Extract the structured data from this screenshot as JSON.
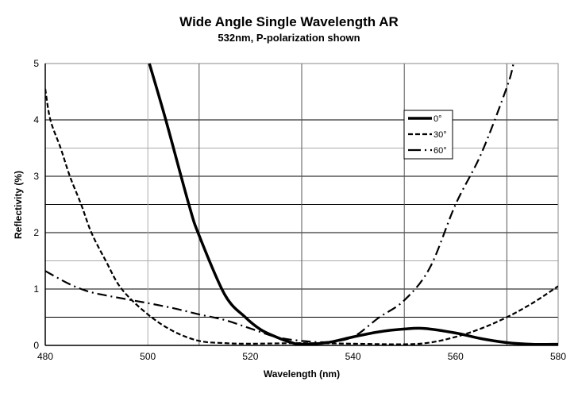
{
  "chart_data": {
    "type": "line",
    "title": "Wide Angle Single Wavelength AR",
    "subtitle": "532nm, P-polarization shown",
    "xlabel": "Wavelength (nm)",
    "ylabel": "Reflectivity (%)",
    "xlim": [
      480,
      580
    ],
    "ylim": [
      0,
      5
    ],
    "xticks": [
      480,
      500,
      520,
      540,
      560,
      580
    ],
    "yticks": [
      0,
      1,
      2,
      3,
      4,
      5
    ],
    "grid": true,
    "legend_position": "upper-middle-right",
    "series": [
      {
        "name": "0°",
        "style": "solid-thick",
        "x": [
          500.3,
          503.5,
          508,
          510,
          515,
          519,
          522,
          525,
          528,
          530,
          535,
          540,
          545,
          550,
          554,
          560,
          565,
          570,
          575,
          580
        ],
        "y": [
          5,
          4,
          2.5,
          1.95,
          0.9,
          0.5,
          0.28,
          0.15,
          0.05,
          0.02,
          0.05,
          0.15,
          0.24,
          0.29,
          0.3,
          0.22,
          0.12,
          0.05,
          0.02,
          0.02
        ]
      },
      {
        "name": "30°",
        "style": "dashed",
        "x": [
          480,
          481,
          483,
          484.8,
          487,
          489,
          491.8,
          494.9,
          500,
          505,
          510,
          515,
          520,
          530,
          540,
          550,
          555,
          560,
          565,
          570,
          575,
          580
        ],
        "y": [
          4.55,
          4.0,
          3.5,
          3.0,
          2.5,
          2.0,
          1.5,
          1.0,
          0.55,
          0.25,
          0.08,
          0.04,
          0.03,
          0.04,
          0.03,
          0.02,
          0.05,
          0.15,
          0.3,
          0.5,
          0.75,
          1.05
        ]
      },
      {
        "name": "60°",
        "style": "dash-dot",
        "x": [
          480,
          484,
          487,
          490,
          497,
          500,
          505,
          510,
          515,
          520,
          525,
          530,
          535,
          540,
          545,
          550,
          555,
          560,
          565,
          570,
          571.3
        ],
        "y": [
          1.32,
          1.12,
          1.0,
          0.92,
          0.8,
          0.75,
          0.66,
          0.55,
          0.45,
          0.3,
          0.15,
          0.08,
          0.06,
          0.15,
          0.49,
          0.8,
          1.38,
          2.5,
          3.4,
          4.58,
          5
        ]
      }
    ]
  }
}
